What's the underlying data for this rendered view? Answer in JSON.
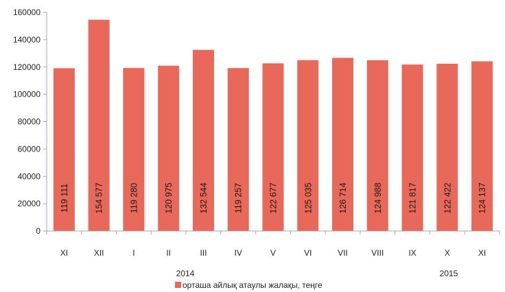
{
  "chart_data": {
    "type": "bar",
    "categories": [
      "XI",
      "XII",
      "I",
      "II",
      "III",
      "IV",
      "V",
      "VI",
      "VII",
      "VIII",
      "IX",
      "X",
      "XI"
    ],
    "series": [
      {
        "name": "орташа айлық атаулы жалақы, теңге",
        "values": [
          119111,
          154577,
          119280,
          120975,
          132544,
          119257,
          122677,
          125035,
          126714,
          124988,
          121817,
          122422,
          124137
        ],
        "labels": [
          "119 111",
          "154 577",
          "119 280",
          "120 975",
          "132 544",
          "119 257",
          "122 677",
          "125 035",
          "126 714",
          "124 988",
          "121 817",
          "122 422",
          "124 137"
        ],
        "color": "#E8685A"
      }
    ],
    "year_groups": [
      {
        "label": "2014",
        "start": 0,
        "end": 1
      },
      {
        "label": "2015",
        "start": 2,
        "end": 12
      }
    ],
    "yticks": [
      "0",
      "20000",
      "40000",
      "60000",
      "80000",
      "100000",
      "120000",
      "140000",
      "160000"
    ],
    "ylim": [
      0,
      160000
    ],
    "grid": false,
    "legend": "bottom-center",
    "axis_color": "#a6a6a6"
  }
}
